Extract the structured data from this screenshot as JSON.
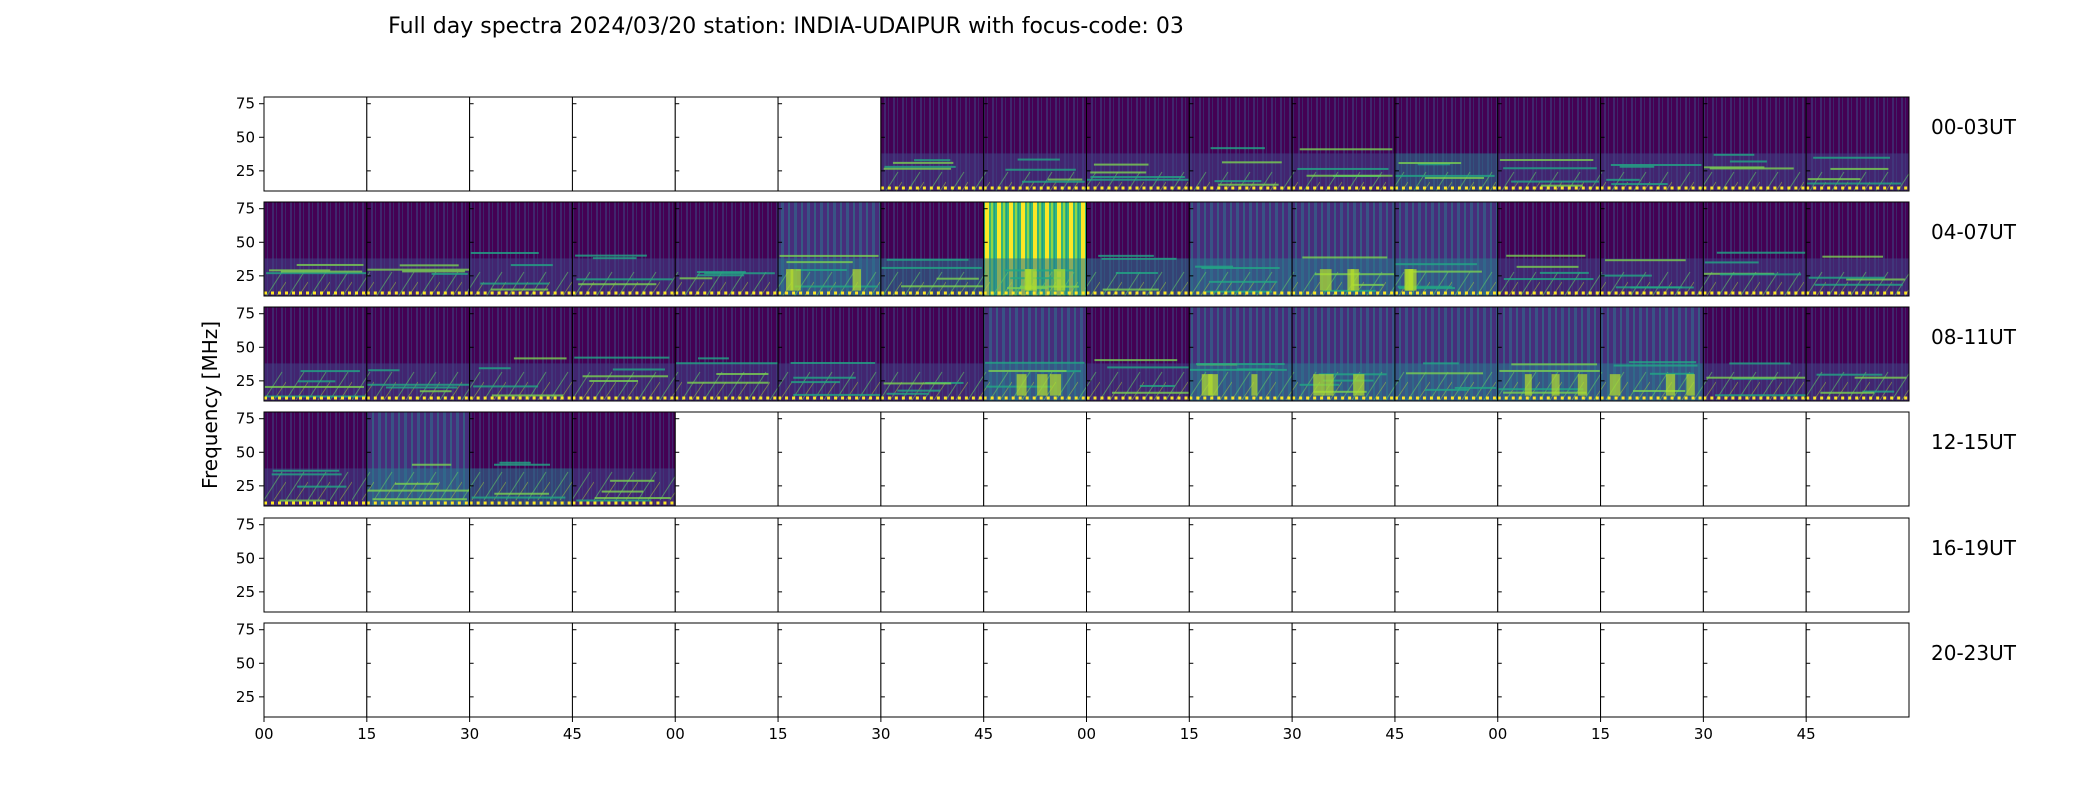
{
  "chart_data": {
    "type": "heatmap",
    "title": "Full day spectra 2024/03/20 station: INDIA-UDAIPUR with focus-code: 03",
    "ylabel": "Frequency [MHz]",
    "ylim": [
      10,
      80
    ],
    "yticks": [
      25,
      50,
      75
    ],
    "xtick_labels": [
      "00",
      "15",
      "30",
      "45",
      "00",
      "15",
      "30",
      "45",
      "00",
      "15",
      "30",
      "45",
      "00",
      "15",
      "30",
      "45"
    ],
    "rows": [
      {
        "label": "00-03UT",
        "panels": [
          0,
          0,
          0,
          0,
          0,
          0,
          1,
          1,
          1,
          1,
          1,
          1,
          1,
          1,
          1,
          1
        ],
        "intensity": [
          0,
          0,
          0,
          0,
          0,
          0,
          0.2,
          0.15,
          0.1,
          0.15,
          0.3,
          0.35,
          0.2,
          0.1,
          0.1,
          0.15
        ]
      },
      {
        "label": "04-07UT",
        "panels": [
          1,
          1,
          1,
          1,
          1,
          1,
          1,
          1,
          1,
          1,
          1,
          1,
          1,
          1,
          1,
          1
        ],
        "intensity": [
          0.2,
          0.25,
          0.15,
          0.2,
          0.25,
          0.5,
          0.35,
          0.95,
          0.35,
          0.4,
          0.45,
          0.45,
          0.2,
          0.1,
          0.1,
          0.2
        ]
      },
      {
        "label": "08-11UT",
        "panels": [
          1,
          1,
          1,
          1,
          1,
          1,
          1,
          1,
          1,
          1,
          1,
          1,
          1,
          1,
          1,
          1
        ],
        "intensity": [
          0.25,
          0.2,
          0.3,
          0.3,
          0.25,
          0.25,
          0.2,
          0.45,
          0.2,
          0.5,
          0.5,
          0.4,
          0.45,
          0.45,
          0.2,
          0.25
        ]
      },
      {
        "label": "12-15UT",
        "panels": [
          1,
          1,
          1,
          1,
          0,
          0,
          0,
          0,
          0,
          0,
          0,
          0,
          0,
          0,
          0,
          0
        ],
        "intensity": [
          0.25,
          0.4,
          0.35,
          0.3,
          0,
          0,
          0,
          0,
          0,
          0,
          0,
          0,
          0,
          0,
          0,
          0
        ]
      },
      {
        "label": "16-19UT",
        "panels": [
          0,
          0,
          0,
          0,
          0,
          0,
          0,
          0,
          0,
          0,
          0,
          0,
          0,
          0,
          0,
          0
        ],
        "intensity": [
          0,
          0,
          0,
          0,
          0,
          0,
          0,
          0,
          0,
          0,
          0,
          0,
          0,
          0,
          0,
          0
        ]
      },
      {
        "label": "20-23UT",
        "panels": [
          0,
          0,
          0,
          0,
          0,
          0,
          0,
          0,
          0,
          0,
          0,
          0,
          0,
          0,
          0,
          0
        ],
        "intensity": [
          0,
          0,
          0,
          0,
          0,
          0,
          0,
          0,
          0,
          0,
          0,
          0,
          0,
          0,
          0,
          0
        ]
      }
    ],
    "colors": {
      "low": "#3b0f70",
      "base": "#440154",
      "mid": "#21918c",
      "high": "#fde725",
      "axis": "#000000"
    }
  }
}
